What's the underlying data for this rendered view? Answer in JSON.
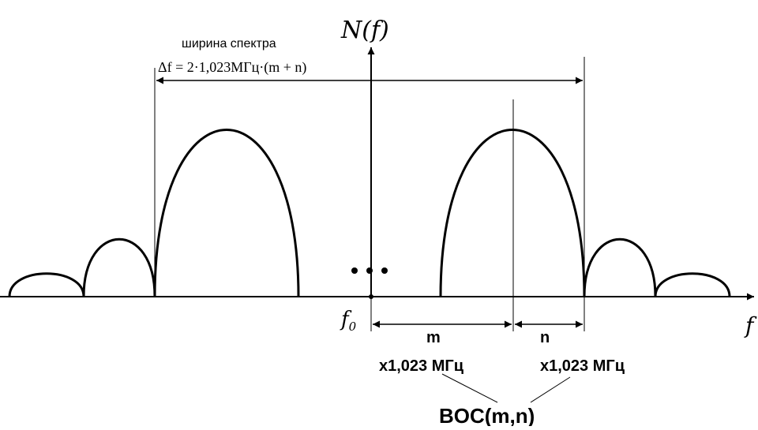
{
  "axis": {
    "y_label": "N(f)",
    "x_label": "f",
    "origin_label": "f",
    "origin_subscript": "0"
  },
  "spectrum_width": {
    "caption": "ширина спектра",
    "formula": "Δf = 2·1,023МГц·(m + n)"
  },
  "segments": {
    "m_label": "m",
    "m_unit": "x1,023 МГц",
    "n_label": "n",
    "n_unit": "x1,023 МГц"
  },
  "modulation_label": "BOC(m,n)",
  "ellipsis": "•••",
  "colors": {
    "stroke": "#000000",
    "background": "#ffffff"
  }
}
